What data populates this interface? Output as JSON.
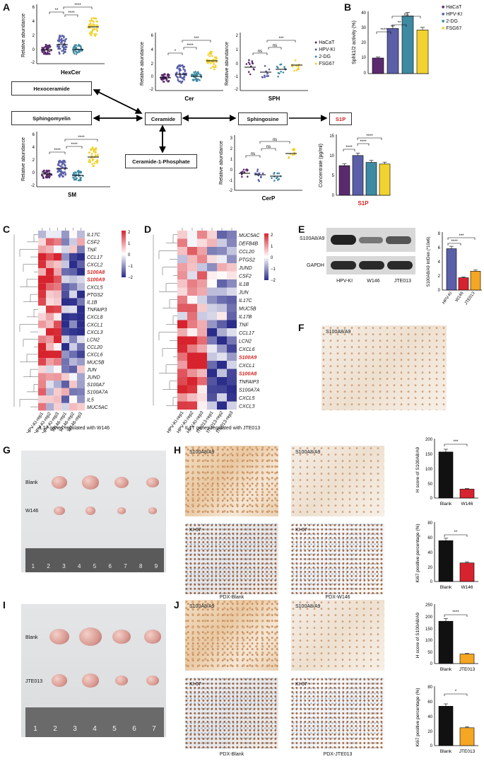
{
  "panels": {
    "A": "A",
    "B": "B",
    "C": "C",
    "D": "D",
    "E": "E",
    "F": "F",
    "G": "G",
    "H": "H",
    "I": "I",
    "J": "J"
  },
  "panel_a": {
    "legend": [
      "HaCaT",
      "HPV-KI",
      "2-DG",
      "FSG67"
    ],
    "colors": {
      "HaCaT": "#5b2a6e",
      "HPV-KI": "#5a5fa8",
      "2-DG": "#3f8aa3",
      "FSG67": "#f2d22e"
    },
    "ylabel": "Relative abundance",
    "plots": {
      "hexcer": {
        "title": "HexCer",
        "ticks": [
          "6",
          "4",
          "2",
          "0",
          "-2"
        ],
        "sig": [
          "**",
          "****",
          "****"
        ]
      },
      "cer": {
        "title": "Cer",
        "ticks": [
          "6",
          "4",
          "2",
          "0",
          "-2"
        ],
        "sig": [
          "*",
          "****",
          "***"
        ]
      },
      "sph": {
        "title": "SPH",
        "ticks": [
          "2",
          "1",
          "0",
          "-1",
          "-2"
        ],
        "sig": [
          "ns",
          "ns",
          "***"
        ]
      },
      "sm": {
        "title": "SM",
        "ticks": [
          "6",
          "4",
          "2",
          "0",
          "-2"
        ],
        "sig": [
          "****",
          "****",
          "****"
        ]
      },
      "cerp": {
        "title": "CerP",
        "ticks": [
          "3",
          "2",
          "1",
          "0",
          "-1",
          "-2"
        ],
        "sig": [
          "ns",
          "ns",
          "ns"
        ]
      },
      "s1p": {
        "title": "S1P",
        "ylabel": "Concentrate (pg/ml)",
        "ticks": [
          "15",
          "10",
          "5",
          "0"
        ],
        "sig": [
          "****",
          "****",
          "****"
        ]
      }
    },
    "pathway": {
      "hexoceramide": "Hexoceramide",
      "sphingomyelin": "Sphingomyelin",
      "ceramide": "Ceramide",
      "sphingosine": "Sphingosine",
      "s1p": "S1P",
      "ceramide_1_phosphate": "Ceramide-1-Phosphate"
    }
  },
  "panel_b": {
    "legend": [
      "HaCaT",
      "HPV-KI",
      "2-DG",
      "FSG67"
    ],
    "ylabel": "Sphk1/2 activity (%)",
    "ticks": [
      "40",
      "30",
      "20",
      "10",
      "0"
    ],
    "sig": [
      "****",
      "**",
      "ns"
    ]
  },
  "panel_c": {
    "genes": [
      "IL17C",
      "CSF2",
      "TNF",
      "CCL17",
      "CXCL2",
      "S100A8",
      "S100A9",
      "CXCL5",
      "PTGS2",
      "IL1B",
      "TNFAIP3",
      "CXCL8",
      "CXCL1",
      "CXCL3",
      "LCN2",
      "CCL20",
      "CXCL6",
      "MUC5B",
      "JUN",
      "JUND",
      "S100A7",
      "S100A7A",
      "IL5",
      "MUC5AC"
    ],
    "highlight": [
      "S100A8",
      "S100A9"
    ],
    "samples": [
      "HPV-KI-rep1",
      "HPV-KI-rep2",
      "HPV-KI-rep3",
      "W146-rep1",
      "W146-rep2",
      "W146-rep3"
    ],
    "scale": [
      "2",
      "1",
      "0",
      "−1",
      "−2"
    ],
    "caption": "IL17 genes regulated with W146"
  },
  "panel_d": {
    "genes": [
      "MUC5AC",
      "DEFB4B",
      "CCL20",
      "PTGS2",
      "JUND",
      "CSF2",
      "IL1B",
      "JUN",
      "IL17C",
      "MUC5B",
      "IL17B",
      "TNF",
      "CCL17",
      "LCN2",
      "CXCL6",
      "S100A9",
      "CXCL1",
      "S100A8",
      "TNFAIP3",
      "S100A7A",
      "CXCL5",
      "CXCL3"
    ],
    "highlight": [
      "S100A9",
      "S100A8"
    ],
    "samples": [
      "HPV-KI-rep1",
      "HPV-KI-rep2",
      "HPV-KI-rep3",
      "JTE013-rep1",
      "JTE013-rep2",
      "JTE013-rep3"
    ],
    "scale": [
      "2",
      "1",
      "0",
      "−1",
      "−2"
    ],
    "caption": "IL17 genes regulated with JTE013"
  },
  "panel_e": {
    "blot1": "S100A8/A9",
    "blot2": "GAPDH",
    "lanes": [
      "HPV-KI",
      "W146",
      "JTE013"
    ],
    "ylabel": "S100A8/A9 IntDen (*10e6)",
    "ticks": [
      "8",
      "6",
      "4",
      "2",
      "0"
    ],
    "sig": [
      "****",
      "***"
    ]
  },
  "panel_f": {
    "label": "S100A8/A9"
  },
  "panel_g": {
    "rows": [
      "Blank",
      "W146"
    ],
    "ruler": [
      "1",
      "2",
      "3",
      "4",
      "5",
      "6",
      "7",
      "8",
      "9"
    ]
  },
  "panel_h": {
    "top_label": "S100A8/A9",
    "bottom_label": "KI-67",
    "captions": [
      "PDX-Blank",
      "PDX-W146"
    ],
    "bar1": {
      "ylabel": "H score of S100A8/A9",
      "ticks": [
        "200",
        "150",
        "100",
        "50",
        "0"
      ],
      "cats": [
        "Blank",
        "W146"
      ],
      "sig": "***"
    },
    "bar2": {
      "ylabel": "Ki67 positive percentage (%)",
      "ticks": [
        "80",
        "60",
        "40",
        "20",
        "0"
      ],
      "cats": [
        "Blank",
        "W146"
      ],
      "sig": "**"
    }
  },
  "panel_i": {
    "rows": [
      "Blank",
      "JTE013"
    ],
    "ruler": [
      "1",
      "2",
      "3",
      "4",
      "5",
      "6",
      "7"
    ]
  },
  "panel_j": {
    "top_label": "S100A8/A9",
    "bottom_label": "KI-67",
    "captions": [
      "PDX-Blank",
      "PDX-JTE013"
    ],
    "bar1": {
      "ylabel": "H score of S100A8/A9",
      "ticks": [
        "250",
        "200",
        "150",
        "100",
        "50",
        "0"
      ],
      "cats": [
        "Blank",
        "JTE013"
      ],
      "sig": "****"
    },
    "bar2": {
      "ylabel": "Ki67 positive percentage (%)",
      "ticks": [
        "80",
        "60",
        "40",
        "20",
        "0"
      ],
      "cats": [
        "Blank",
        "JTE013"
      ],
      "sig": "*"
    }
  },
  "chart_data": [
    {
      "type": "bar",
      "id": "B",
      "categories": [
        "HaCaT",
        "HPV-KI",
        "2-DG",
        "FSG67"
      ],
      "values": [
        10,
        29,
        37,
        28
      ],
      "ylabel": "Sphk1/2 activity (%)",
      "ylim": [
        0,
        40
      ]
    },
    {
      "type": "bar",
      "id": "A-S1P",
      "categories": [
        "HaCaT",
        "HPV-KI",
        "2-DG",
        "FSG67"
      ],
      "values": [
        7.3,
        9.8,
        8.1,
        7.7
      ],
      "ylabel": "Concentrate (pg/ml)",
      "ylim": [
        0,
        15
      ]
    },
    {
      "type": "bar",
      "id": "E",
      "categories": [
        "HPV-KI",
        "W146",
        "JTE013"
      ],
      "values": [
        5.7,
        1.7,
        2.6
      ],
      "ylabel": "S100A8/A9 IntDen (*10e6)",
      "ylim": [
        0,
        8
      ]
    },
    {
      "type": "bar",
      "id": "H1",
      "categories": [
        "Blank",
        "W146"
      ],
      "values": [
        155,
        30
      ],
      "ylabel": "H score of S100A8/A9",
      "ylim": [
        0,
        200
      ]
    },
    {
      "type": "bar",
      "id": "H2",
      "categories": [
        "Blank",
        "W146"
      ],
      "values": [
        55,
        25
      ],
      "ylabel": "Ki67 positive percentage (%)",
      "ylim": [
        0,
        80
      ]
    },
    {
      "type": "bar",
      "id": "J1",
      "categories": [
        "Blank",
        "JTE013"
      ],
      "values": [
        178,
        40
      ],
      "ylabel": "H score of S100A8/A9",
      "ylim": [
        0,
        250
      ]
    },
    {
      "type": "bar",
      "id": "J2",
      "categories": [
        "Blank",
        "JTE013"
      ],
      "values": [
        53,
        24
      ],
      "ylabel": "Ki67 positive percentage (%)",
      "ylim": [
        0,
        80
      ]
    }
  ]
}
